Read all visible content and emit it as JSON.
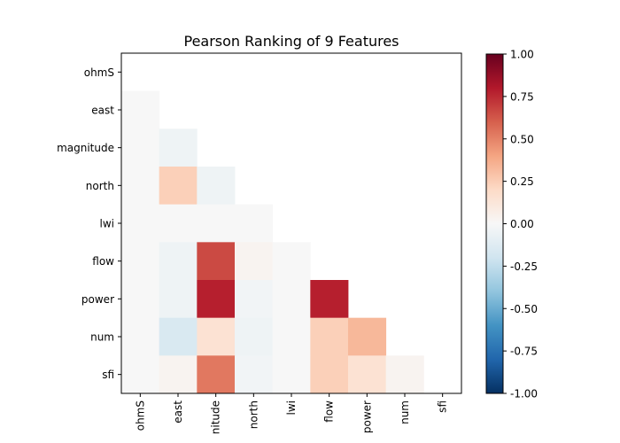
{
  "chart_data": {
    "type": "heatmap",
    "title": "Pearson Ranking of 9 Features",
    "features": [
      "ohmS",
      "east",
      "magnitude",
      "north",
      "lwi",
      "flow",
      "power",
      "num",
      "sfi"
    ],
    "x_tick_labels": [
      "ohmS",
      "east",
      "nitude",
      "north",
      "lwi",
      "flow",
      "power",
      "num",
      "sfi"
    ],
    "mask": "lower-triangle (cells with column < row shown); diagonal and upper triangle blank",
    "matrix": [
      [
        null,
        null,
        null,
        null,
        null,
        null,
        null,
        null,
        null
      ],
      [
        0.0,
        null,
        null,
        null,
        null,
        null,
        null,
        null,
        null
      ],
      [
        0.0,
        -0.05,
        null,
        null,
        null,
        null,
        null,
        null,
        null
      ],
      [
        0.0,
        0.24,
        -0.05,
        null,
        null,
        null,
        null,
        null,
        null
      ],
      [
        0.0,
        0.0,
        0.0,
        0.0,
        null,
        null,
        null,
        null,
        null
      ],
      [
        0.0,
        -0.05,
        0.66,
        0.03,
        0.0,
        null,
        null,
        null,
        null
      ],
      [
        0.0,
        -0.05,
        0.78,
        -0.03,
        0.0,
        0.78,
        null,
        null,
        null
      ],
      [
        0.0,
        -0.16,
        0.15,
        -0.05,
        0.0,
        0.24,
        0.33,
        null,
        null
      ],
      [
        0.0,
        0.03,
        0.53,
        -0.03,
        0.0,
        0.24,
        0.15,
        0.03,
        null
      ]
    ],
    "colorbar": {
      "range": [
        -1.0,
        1.0
      ],
      "ticks": [
        "-1.00",
        "-0.75",
        "-0.50",
        "-0.25",
        "0.00",
        "0.25",
        "0.50",
        "0.75",
        "1.00"
      ],
      "tick_values": [
        -1.0,
        -0.75,
        -0.5,
        -0.25,
        0.0,
        0.25,
        0.5,
        0.75,
        1.0
      ],
      "colormap": "RdBu_r"
    },
    "grid": false
  }
}
